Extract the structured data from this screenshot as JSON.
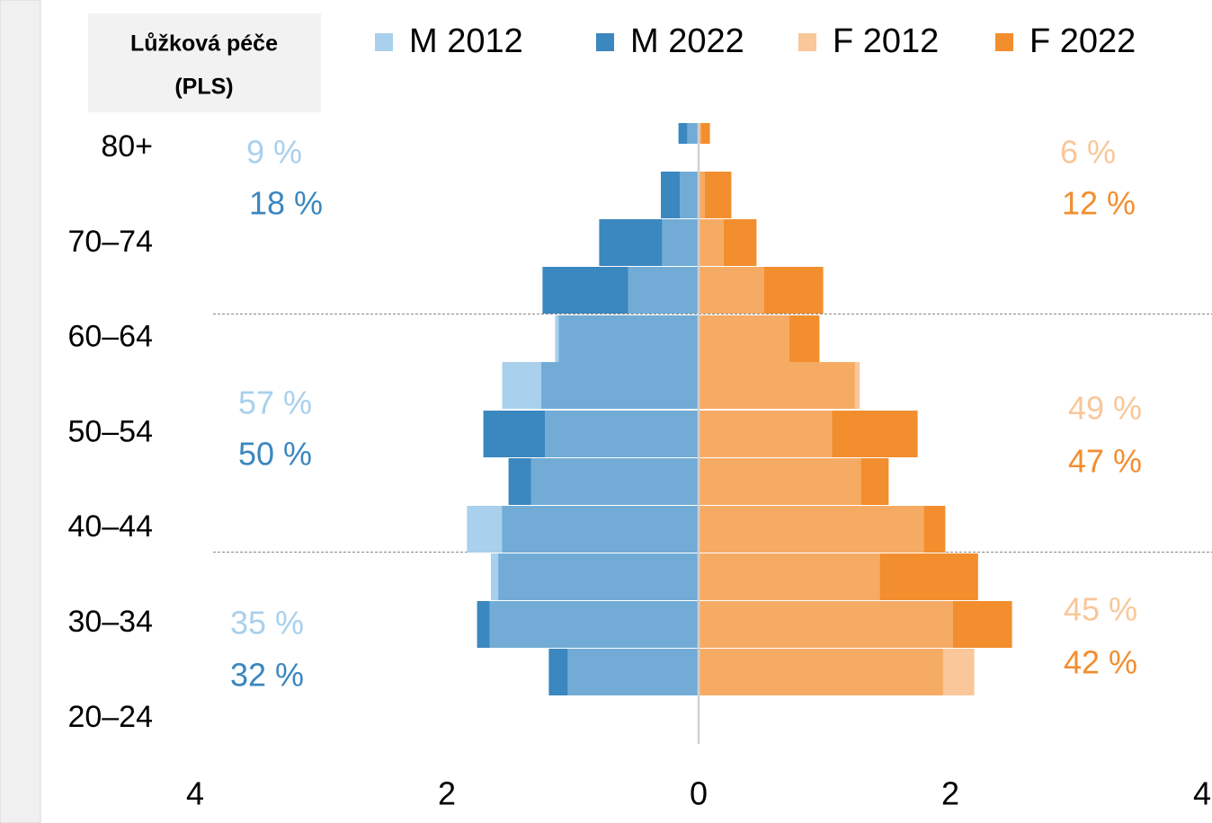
{
  "chart_data": {
    "type": "pyramid",
    "title": [
      "Lůžková péče",
      "(PLS)"
    ],
    "age_labels": [
      "80+",
      "70–74",
      "60–64",
      "50–54",
      "40–44",
      "30–34",
      "20–24"
    ],
    "series": [
      {
        "name": "M 2012",
        "side": "left",
        "color": "#a9d0ec",
        "values": [
          0.09,
          0.15,
          0.29,
          0.56,
          1.14,
          1.56,
          1.22,
          1.33,
          1.84,
          1.65,
          1.66,
          1.04
        ]
      },
      {
        "name": "M 2022",
        "side": "left",
        "color": "#3b87bf",
        "values": [
          0.16,
          0.3,
          0.79,
          1.24,
          1.11,
          1.25,
          1.71,
          1.51,
          1.56,
          1.59,
          1.76,
          1.19
        ]
      },
      {
        "name": "F 2012",
        "side": "right",
        "color": "#f9c799",
        "values": [
          0.02,
          0.05,
          0.2,
          0.52,
          0.72,
          1.28,
          1.06,
          1.29,
          1.79,
          1.44,
          2.02,
          2.19
        ]
      },
      {
        "name": "F 2022",
        "side": "right",
        "color": "#f28e2e",
        "values": [
          0.09,
          0.26,
          0.46,
          0.99,
          0.96,
          1.24,
          1.74,
          1.51,
          1.96,
          2.22,
          2.49,
          1.94
        ]
      }
    ],
    "annotations": [
      {
        "text": "9 %",
        "series": 0,
        "group": 0
      },
      {
        "text": "18 %",
        "series": 1,
        "group": 0
      },
      {
        "text": "57 %",
        "series": 0,
        "group": 1
      },
      {
        "text": "50 %",
        "series": 1,
        "group": 1
      },
      {
        "text": "35 %",
        "series": 0,
        "group": 2
      },
      {
        "text": "32 %",
        "series": 1,
        "group": 2
      },
      {
        "text": "6 %",
        "series": 2,
        "group": 0
      },
      {
        "text": "12 %",
        "series": 3,
        "group": 0
      },
      {
        "text": "49 %",
        "series": 2,
        "group": 1
      },
      {
        "text": "47 %",
        "series": 3,
        "group": 1
      },
      {
        "text": "45 %",
        "series": 2,
        "group": 2
      },
      {
        "text": "42 %",
        "series": 3,
        "group": 2
      }
    ],
    "xlim": [
      -4,
      4
    ],
    "xticks": [
      {
        "value": -4,
        "label": "4"
      },
      {
        "value": -2,
        "label": "2"
      },
      0,
      2,
      4
    ]
  }
}
